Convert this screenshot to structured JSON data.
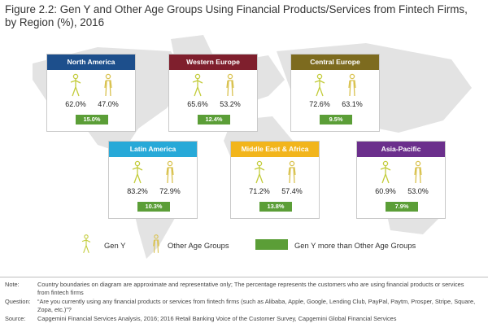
{
  "title": "Figure 2.2: Gen Y and Other Age Groups Using Financial Products/Services from Fintech Firms, by Region (%), 2016",
  "colors": {
    "gen_y": "#c3cc3b",
    "other": "#d9c24f",
    "difference": "#5b9e37",
    "map": "#e3e3e3"
  },
  "chart_data": {
    "type": "table",
    "title": "Figure 2.2: Gen Y and Other Age Groups Using Financial Products/Services from Fintech Firms, by Region (%), 2016",
    "unit": "%",
    "columns": [
      "Gen Y",
      "Other Age Groups",
      "Gen Y more than Other Age Groups"
    ],
    "regions": [
      {
        "name": "North America",
        "color": "#1d4f8c",
        "gen_y": "62.0%",
        "other": "47.0%",
        "diff": "15.0%"
      },
      {
        "name": "Western Europe",
        "color": "#7f1f2d",
        "gen_y": "65.6%",
        "other": "53.2%",
        "diff": "12.4%"
      },
      {
        "name": "Central Europe",
        "color": "#7d6b1f",
        "gen_y": "72.6%",
        "other": "63.1%",
        "diff": "9.5%"
      },
      {
        "name": "Latin America",
        "color": "#27a9d8",
        "gen_y": "83.2%",
        "other": "72.9%",
        "diff": "10.3%"
      },
      {
        "name": "Middle East & Africa",
        "color": "#f2b51c",
        "gen_y": "71.2%",
        "other": "57.4%",
        "diff": "13.8%"
      },
      {
        "name": "Asia-Pacific",
        "color": "#6b2f8c",
        "gen_y": "60.9%",
        "other": "53.0%",
        "diff": "7.9%"
      }
    ]
  },
  "legend": {
    "gen_y": "Gen Y",
    "other": "Other Age Groups",
    "difference": "Gen Y more than Other Age Groups"
  },
  "notes": [
    {
      "label": "Note:",
      "text": "Country boundaries on diagram are approximate and representative only; The percentage represents the customers who are using financial products or services from fintech firms"
    },
    {
      "label": "Question:",
      "text": "“Are you currently using any financial products or services from fintech firms (such as Alibaba, Apple, Google, Lending Club, PayPal, Paytm, Prosper, Stripe, Square, Zopa, etc.)”?"
    },
    {
      "label": "Source:",
      "text": "Capgemini Financial Services Analysis, 2016; 2016 Retail Banking Voice of the Customer Survey, Capgemini Global Financial Services"
    }
  ]
}
